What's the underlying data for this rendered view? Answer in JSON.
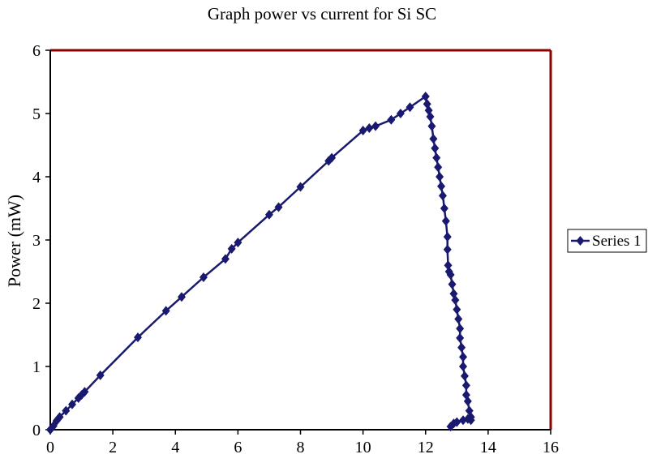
{
  "chart_data": {
    "type": "scatter",
    "title": "Graph power vs current for Si SC",
    "xlabel": "",
    "ylabel": "Power (mW)",
    "xlim": [
      0,
      16
    ],
    "ylim": [
      0,
      6
    ],
    "xticks": [
      "0",
      "2",
      "4",
      "6",
      "8",
      "10",
      "12",
      "14",
      "16"
    ],
    "yticks": [
      "0",
      "1",
      "2",
      "3",
      "4",
      "5",
      "6"
    ],
    "grid": false,
    "legend_position": "right",
    "markers": "diamond",
    "line": true,
    "series": [
      {
        "name": "Series 1",
        "color": "#191970",
        "x": [
          0.0,
          0.1,
          0.2,
          0.3,
          0.5,
          0.7,
          0.9,
          1.0,
          1.1,
          1.6,
          2.8,
          3.7,
          4.2,
          4.9,
          5.6,
          5.8,
          6.0,
          7.0,
          7.3,
          8.0,
          8.9,
          9.0,
          10.0,
          10.2,
          10.4,
          10.9,
          11.2,
          11.5,
          12.0,
          12.05,
          12.1,
          12.15,
          12.2,
          12.25,
          12.3,
          12.35,
          12.4,
          12.45,
          12.5,
          12.55,
          12.6,
          12.65,
          12.7,
          12.7,
          12.72,
          12.75,
          12.8,
          12.85,
          12.9,
          12.95,
          13.0,
          13.05,
          13.1,
          13.1,
          13.15,
          13.2,
          13.2,
          13.25,
          13.3,
          13.3,
          13.35,
          13.4,
          13.45,
          13.45,
          13.35,
          13.2,
          13.0,
          12.9,
          12.8
        ],
        "y": [
          0.0,
          0.06,
          0.14,
          0.2,
          0.3,
          0.4,
          0.5,
          0.55,
          0.6,
          0.86,
          1.46,
          1.88,
          2.1,
          2.41,
          2.7,
          2.86,
          2.96,
          3.4,
          3.52,
          3.84,
          4.25,
          4.3,
          4.73,
          4.77,
          4.8,
          4.9,
          5.0,
          5.1,
          5.27,
          5.15,
          5.05,
          4.95,
          4.8,
          4.6,
          4.45,
          4.3,
          4.15,
          4.0,
          3.85,
          3.7,
          3.5,
          3.3,
          3.05,
          2.85,
          2.6,
          2.5,
          2.45,
          2.3,
          2.15,
          2.05,
          1.9,
          1.75,
          1.6,
          1.45,
          1.3,
          1.15,
          1.0,
          0.85,
          0.7,
          0.55,
          0.45,
          0.3,
          0.2,
          0.15,
          0.17,
          0.15,
          0.12,
          0.1,
          0.05
        ]
      }
    ]
  },
  "colors": {
    "series": "#191970",
    "plot_border": "#8b0000",
    "axis": "#000000"
  }
}
